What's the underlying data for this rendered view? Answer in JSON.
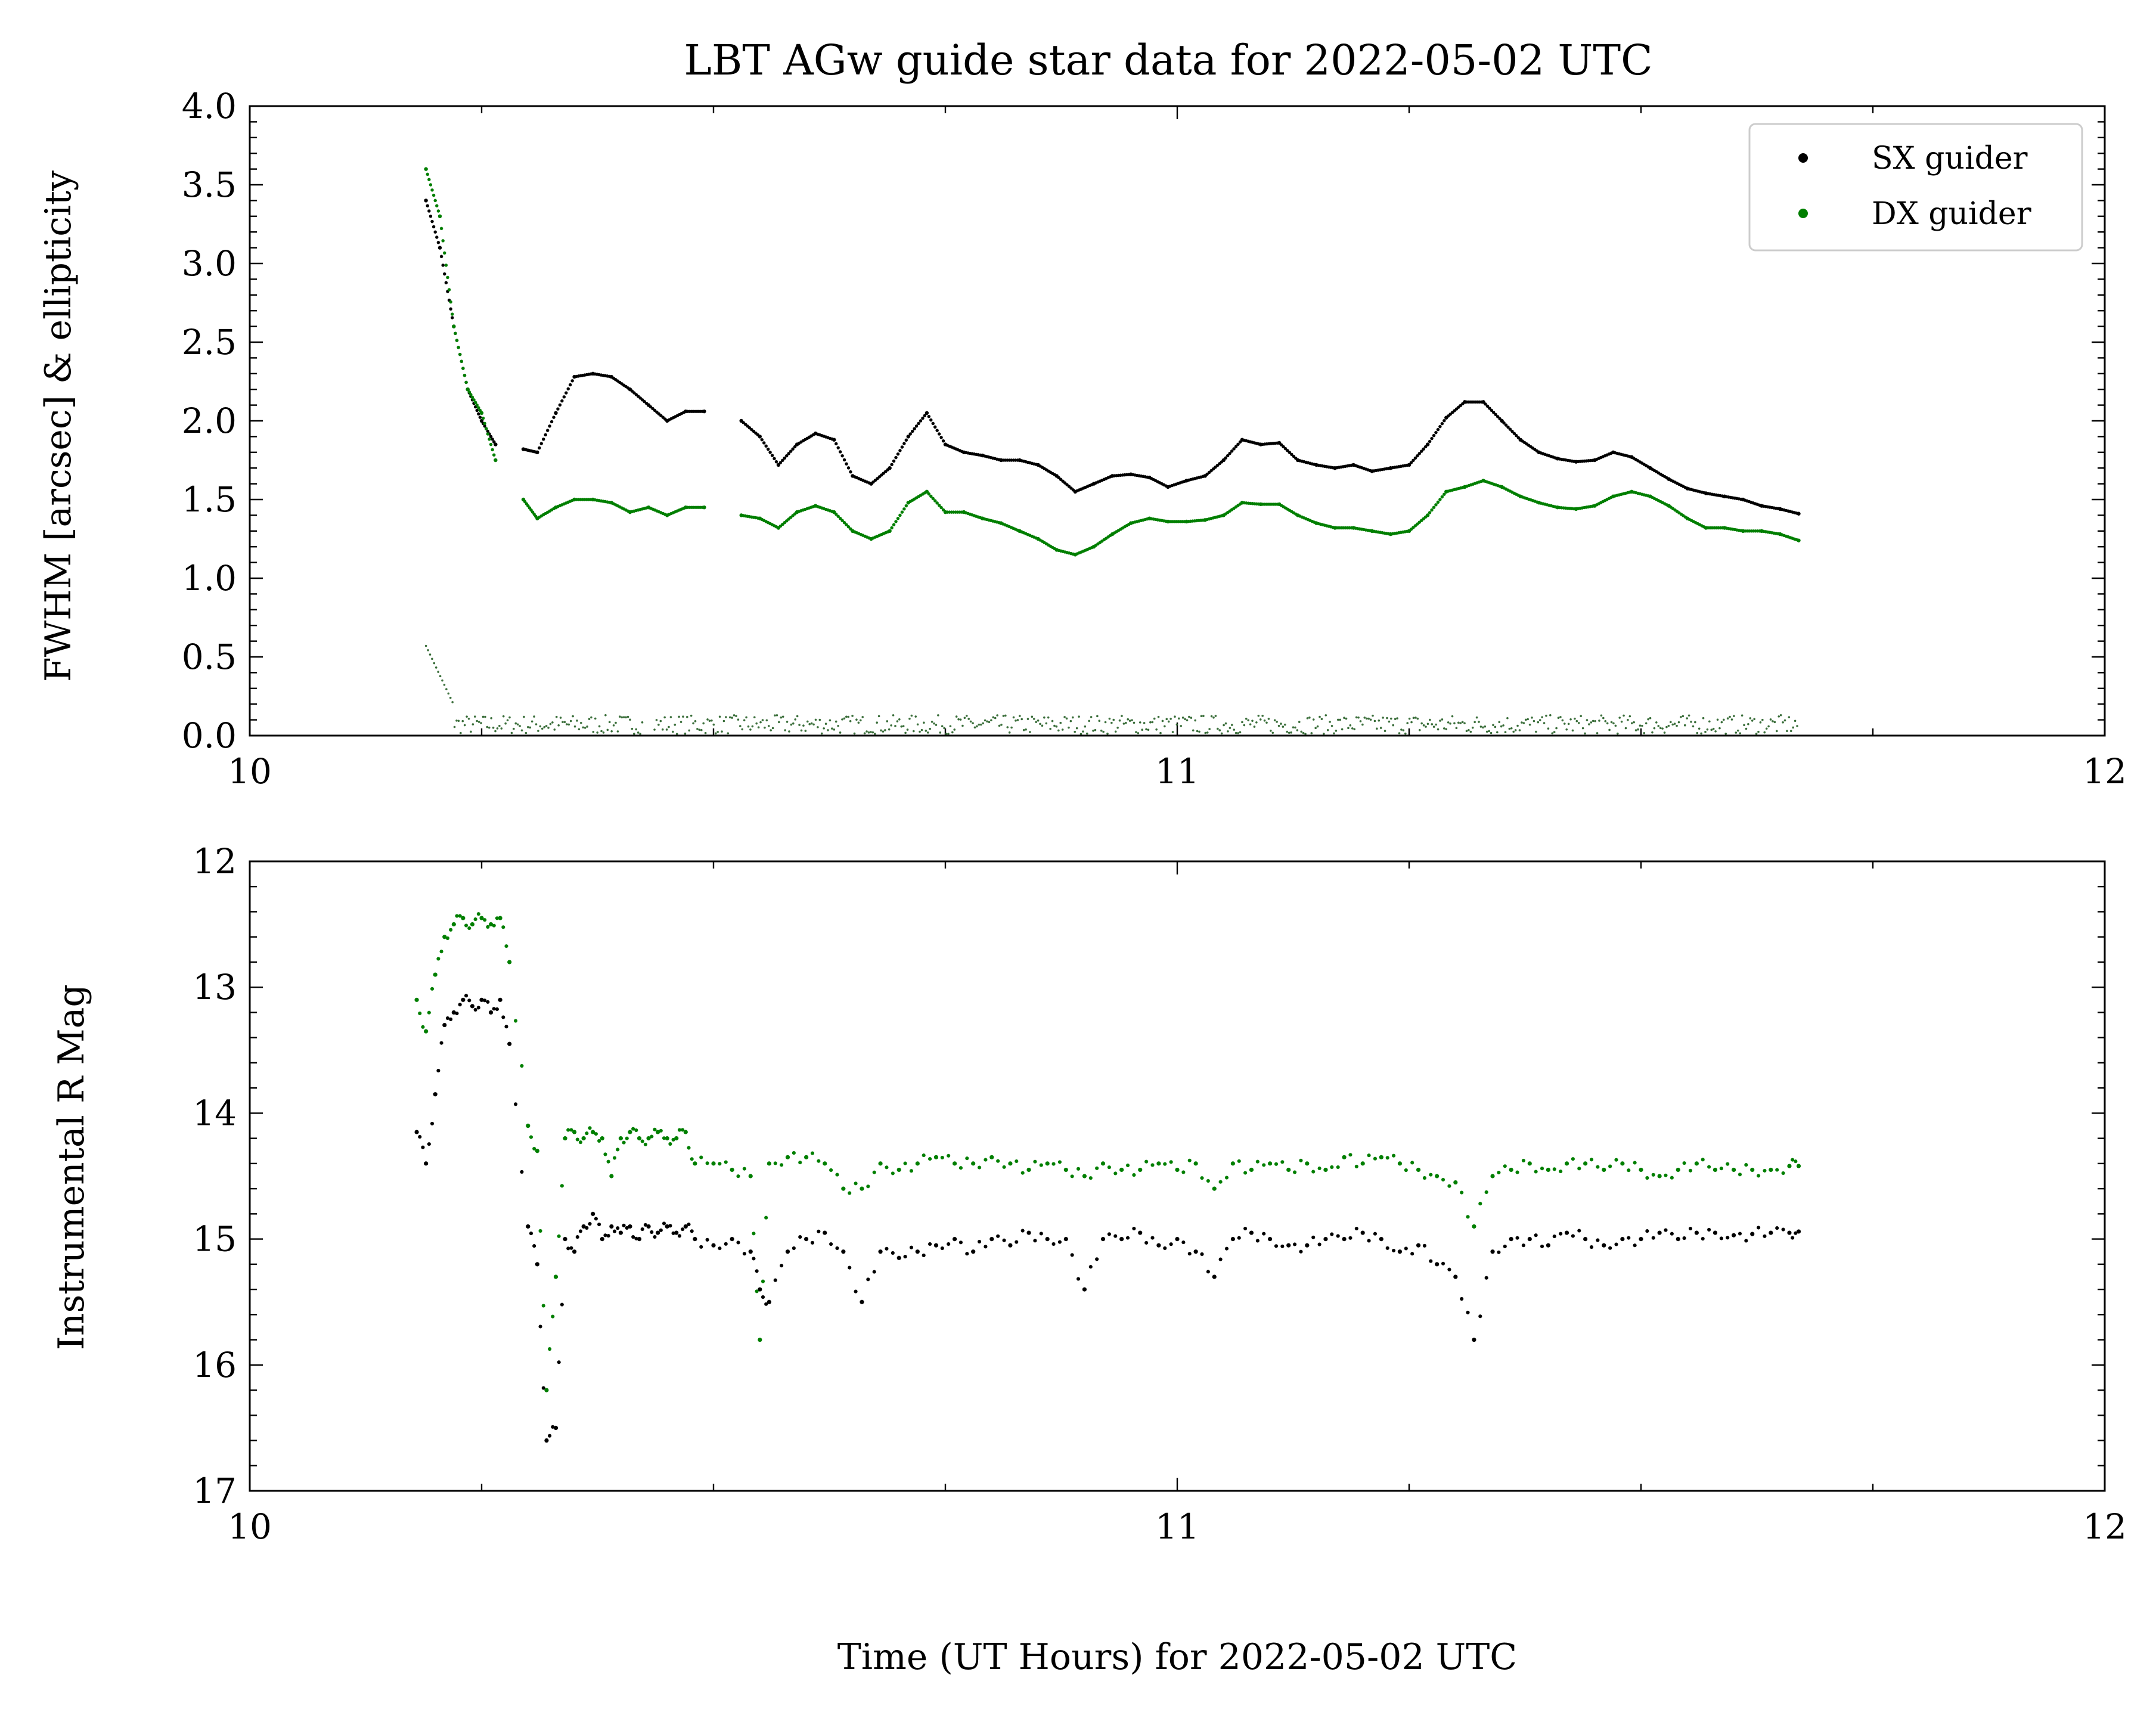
{
  "title": "LBT AGw guide star data for 2022-05-02 UTC",
  "xlabel": "Time (UT Hours) for 2022-05-02 UTC",
  "colors": {
    "sx": "#000000",
    "dx": "#007f00",
    "ellipticity": "#3a6e3a"
  },
  "chart_data": [
    {
      "type": "scatter",
      "panel": "top",
      "ylabel": "FWHM [arcsec] & ellipticity",
      "xlim": [
        10,
        12
      ],
      "ylim": [
        0,
        4
      ],
      "x_ticks": [
        10,
        11,
        12
      ],
      "x_tick_labels": [
        "10",
        "11",
        "12"
      ],
      "y_ticks": [
        0,
        0.5,
        1,
        1.5,
        2,
        2.5,
        3,
        3.5,
        4
      ],
      "y_tick_labels": [
        "0.0",
        "0.5",
        "1.0",
        "1.5",
        "2.0",
        "2.5",
        "3.0",
        "3.5",
        "4.0"
      ],
      "legend": {
        "position": "top-right",
        "entries": [
          "SX guider",
          "DX guider"
        ]
      },
      "series": [
        {
          "name": "SX guider",
          "color": "#000000",
          "x": [
            10.19,
            10.205,
            10.22,
            10.235,
            10.25,
            10.265,
            10.28,
            10.295,
            10.31,
            10.33,
            10.35,
            10.37,
            10.39,
            10.41,
            10.43,
            10.45,
            10.47,
            10.49,
            10.51,
            10.53,
            10.55,
            10.57,
            10.59,
            10.61,
            10.63,
            10.65,
            10.67,
            10.69,
            10.71,
            10.73,
            10.75,
            10.77,
            10.79,
            10.81,
            10.83,
            10.85,
            10.87,
            10.89,
            10.91,
            10.93,
            10.95,
            10.97,
            10.99,
            11.01,
            11.03,
            11.05,
            11.07,
            11.09,
            11.11,
            11.13,
            11.15,
            11.17,
            11.19,
            11.21,
            11.23,
            11.25,
            11.27,
            11.29,
            11.31,
            11.33,
            11.35,
            11.37,
            11.39,
            11.41,
            11.43,
            11.45,
            11.47,
            11.49,
            11.51,
            11.53,
            11.55,
            11.57,
            11.59,
            11.61,
            11.63,
            11.65,
            11.67
          ],
          "y": [
            3.4,
            3.1,
            2.6,
            2.2,
            2.0,
            1.85,
            null,
            1.82,
            1.8,
            2.05,
            2.28,
            2.3,
            2.28,
            2.2,
            2.1,
            2.0,
            2.06,
            2.06,
            null,
            2.0,
            1.9,
            1.72,
            1.85,
            1.92,
            1.88,
            1.65,
            1.6,
            1.7,
            1.9,
            2.05,
            1.85,
            1.8,
            1.78,
            1.75,
            1.75,
            1.72,
            1.65,
            1.55,
            1.6,
            1.65,
            1.66,
            1.64,
            1.58,
            1.62,
            1.65,
            1.75,
            1.88,
            1.85,
            1.86,
            1.75,
            1.72,
            1.7,
            1.72,
            1.68,
            1.7,
            1.72,
            1.85,
            2.02,
            2.12,
            2.12,
            2.0,
            1.88,
            1.8,
            1.76,
            1.74,
            1.75,
            1.8,
            1.77,
            1.7,
            1.63,
            1.57,
            1.54,
            1.52,
            1.5,
            1.46,
            1.44,
            1.41
          ]
        },
        {
          "name": "DX guider",
          "color": "#007f00",
          "x": [
            10.19,
            10.205,
            10.22,
            10.235,
            10.25,
            10.265,
            10.28,
            10.295,
            10.31,
            10.33,
            10.35,
            10.37,
            10.39,
            10.41,
            10.43,
            10.45,
            10.47,
            10.49,
            10.51,
            10.53,
            10.55,
            10.57,
            10.59,
            10.61,
            10.63,
            10.65,
            10.67,
            10.69,
            10.71,
            10.73,
            10.75,
            10.77,
            10.79,
            10.81,
            10.83,
            10.85,
            10.87,
            10.89,
            10.91,
            10.93,
            10.95,
            10.97,
            10.99,
            11.01,
            11.03,
            11.05,
            11.07,
            11.09,
            11.11,
            11.13,
            11.15,
            11.17,
            11.19,
            11.21,
            11.23,
            11.25,
            11.27,
            11.29,
            11.31,
            11.33,
            11.35,
            11.37,
            11.39,
            11.41,
            11.43,
            11.45,
            11.47,
            11.49,
            11.51,
            11.53,
            11.55,
            11.57,
            11.59,
            11.61,
            11.63,
            11.65,
            11.67
          ],
          "y": [
            3.6,
            3.3,
            2.6,
            2.2,
            2.05,
            1.75,
            null,
            1.5,
            1.38,
            1.45,
            1.5,
            1.5,
            1.48,
            1.42,
            1.45,
            1.4,
            1.45,
            1.45,
            null,
            1.4,
            1.38,
            1.32,
            1.42,
            1.46,
            1.42,
            1.3,
            1.25,
            1.3,
            1.48,
            1.55,
            1.42,
            1.42,
            1.38,
            1.35,
            1.3,
            1.25,
            1.18,
            1.15,
            1.2,
            1.28,
            1.35,
            1.38,
            1.36,
            1.36,
            1.37,
            1.4,
            1.48,
            1.47,
            1.47,
            1.4,
            1.35,
            1.32,
            1.32,
            1.3,
            1.28,
            1.3,
            1.4,
            1.55,
            1.58,
            1.62,
            1.58,
            1.52,
            1.48,
            1.45,
            1.44,
            1.46,
            1.52,
            1.55,
            1.52,
            1.46,
            1.38,
            1.32,
            1.32,
            1.3,
            1.3,
            1.28,
            1.24
          ]
        }
      ],
      "ellipticity": {
        "x_range": [
          10.19,
          11.67
        ],
        "baseline": 0.07,
        "early_peak": 0.5
      }
    },
    {
      "type": "scatter",
      "panel": "bottom",
      "ylabel": "Instrumental R Mag",
      "xlim": [
        10,
        12
      ],
      "ylim": [
        17,
        12
      ],
      "inverted_y": true,
      "x_ticks": [
        10,
        11,
        12
      ],
      "x_tick_labels": [
        "10",
        "11",
        "12"
      ],
      "y_ticks": [
        12,
        13,
        14,
        15,
        16,
        17
      ],
      "y_tick_labels": [
        "12",
        "13",
        "14",
        "15",
        "16",
        "17"
      ],
      "series": [
        {
          "name": "SX guider",
          "color": "#000000",
          "x": [
            10.18,
            10.19,
            10.2,
            10.21,
            10.22,
            10.23,
            10.24,
            10.25,
            10.26,
            10.27,
            10.28,
            10.3,
            10.31,
            10.32,
            10.33,
            10.34,
            10.35,
            10.36,
            10.37,
            10.38,
            10.39,
            10.4,
            10.41,
            10.42,
            10.43,
            10.44,
            10.45,
            10.46,
            10.47,
            10.48,
            10.5,
            10.52,
            10.54,
            10.55,
            10.56,
            10.58,
            10.6,
            10.62,
            10.64,
            10.66,
            10.68,
            10.7,
            10.72,
            10.74,
            10.76,
            10.78,
            10.8,
            10.82,
            10.84,
            10.86,
            10.88,
            10.9,
            10.92,
            10.94,
            10.96,
            10.98,
            11.0,
            11.02,
            11.04,
            11.06,
            11.08,
            11.1,
            11.12,
            11.14,
            11.16,
            11.18,
            11.2,
            11.22,
            11.24,
            11.26,
            11.28,
            11.3,
            11.32,
            11.34,
            11.36,
            11.38,
            11.4,
            11.42,
            11.44,
            11.46,
            11.48,
            11.5,
            11.52,
            11.54,
            11.56,
            11.58,
            11.6,
            11.62,
            11.64,
            11.66,
            11.67
          ],
          "y": [
            14.15,
            14.4,
            13.85,
            13.3,
            13.2,
            13.1,
            13.15,
            13.1,
            13.2,
            13.1,
            13.45,
            14.9,
            15.2,
            16.6,
            16.5,
            15.0,
            15.1,
            14.9,
            14.8,
            15.0,
            14.9,
            14.95,
            14.9,
            15.0,
            14.9,
            14.95,
            14.9,
            14.95,
            14.9,
            15.0,
            15.05,
            15.0,
            15.1,
            15.4,
            15.5,
            15.1,
            15.0,
            14.95,
            15.1,
            15.5,
            15.1,
            15.15,
            15.1,
            15.05,
            15.0,
            15.1,
            15.0,
            15.05,
            14.95,
            15.0,
            15.0,
            15.4,
            15.0,
            15.0,
            14.95,
            15.05,
            15.0,
            15.1,
            15.3,
            15.0,
            14.95,
            15.0,
            15.05,
            15.05,
            15.0,
            15.0,
            14.95,
            15.0,
            15.1,
            15.05,
            15.2,
            15.3,
            15.8,
            15.1,
            15.0,
            15.0,
            15.05,
            14.95,
            15.0,
            15.05,
            15.0,
            15.0,
            14.95,
            15.0,
            14.95,
            14.95,
            14.97,
            14.96,
            14.95,
            14.95,
            14.94
          ]
        },
        {
          "name": "DX guider",
          "color": "#007f00",
          "x": [
            10.18,
            10.19,
            10.2,
            10.21,
            10.22,
            10.23,
            10.24,
            10.25,
            10.26,
            10.27,
            10.28,
            10.3,
            10.31,
            10.32,
            10.33,
            10.34,
            10.35,
            10.36,
            10.37,
            10.38,
            10.39,
            10.4,
            10.41,
            10.42,
            10.43,
            10.44,
            10.45,
            10.46,
            10.47,
            10.48,
            10.5,
            10.52,
            10.54,
            10.55,
            10.56,
            10.58,
            10.6,
            10.62,
            10.64,
            10.66,
            10.68,
            10.7,
            10.72,
            10.74,
            10.76,
            10.78,
            10.8,
            10.82,
            10.84,
            10.86,
            10.88,
            10.9,
            10.92,
            10.94,
            10.96,
            10.98,
            11.0,
            11.02,
            11.04,
            11.06,
            11.08,
            11.1,
            11.12,
            11.14,
            11.16,
            11.18,
            11.2,
            11.22,
            11.24,
            11.26,
            11.28,
            11.3,
            11.32,
            11.34,
            11.36,
            11.38,
            11.4,
            11.42,
            11.44,
            11.46,
            11.48,
            11.5,
            11.52,
            11.54,
            11.56,
            11.58,
            11.6,
            11.62,
            11.64,
            11.66,
            11.67
          ],
          "y": [
            13.1,
            13.35,
            12.9,
            12.6,
            12.5,
            12.45,
            12.5,
            12.45,
            12.5,
            12.45,
            12.8,
            14.1,
            14.3,
            16.2,
            15.3,
            14.2,
            14.15,
            14.2,
            14.15,
            14.2,
            14.5,
            14.2,
            14.15,
            14.2,
            14.2,
            14.15,
            14.2,
            14.2,
            14.15,
            14.4,
            14.4,
            14.45,
            14.5,
            15.8,
            14.4,
            14.35,
            14.35,
            14.4,
            14.6,
            14.6,
            14.4,
            14.45,
            14.4,
            14.35,
            14.4,
            14.4,
            14.35,
            14.4,
            14.45,
            14.4,
            14.45,
            14.5,
            14.4,
            14.45,
            14.45,
            14.4,
            14.45,
            14.4,
            14.6,
            14.4,
            14.45,
            14.4,
            14.45,
            14.4,
            14.45,
            14.35,
            14.4,
            14.35,
            14.4,
            14.45,
            14.5,
            14.55,
            14.9,
            14.5,
            14.45,
            14.4,
            14.45,
            14.4,
            14.4,
            14.45,
            14.4,
            14.45,
            14.5,
            14.45,
            14.4,
            14.45,
            14.45,
            14.45,
            14.45,
            14.42,
            14.42
          ]
        }
      ]
    }
  ]
}
